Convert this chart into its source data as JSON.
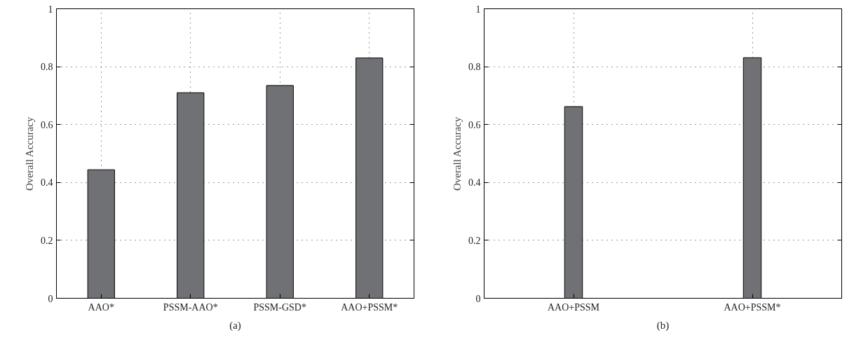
{
  "chart_data": [
    {
      "type": "bar",
      "categories": [
        "AAO*",
        "PSSM-AAO*",
        "PSSM-GSD*",
        "AAO+PSSM*"
      ],
      "values": [
        0.444,
        0.71,
        0.735,
        0.83
      ],
      "color": "#707175",
      "ylabel": "Overall Accuracy",
      "ylim": [
        0,
        1
      ],
      "yticks": [
        0,
        0.2,
        0.4,
        0.6,
        0.8,
        1
      ],
      "grid": true,
      "annotations": [
        "(a)"
      ]
    },
    {
      "type": "bar",
      "categories": [
        "AAO+PSSM",
        "AAO+PSSM*"
      ],
      "values": [
        0.662,
        0.831
      ],
      "color": "#707175",
      "ylabel": "Overall Accuracy",
      "ylim": [
        0,
        1
      ],
      "yticks": [
        0,
        0.2,
        0.4,
        0.6,
        0.8,
        1
      ],
      "grid": true,
      "annotations": [
        "(b)"
      ]
    }
  ]
}
